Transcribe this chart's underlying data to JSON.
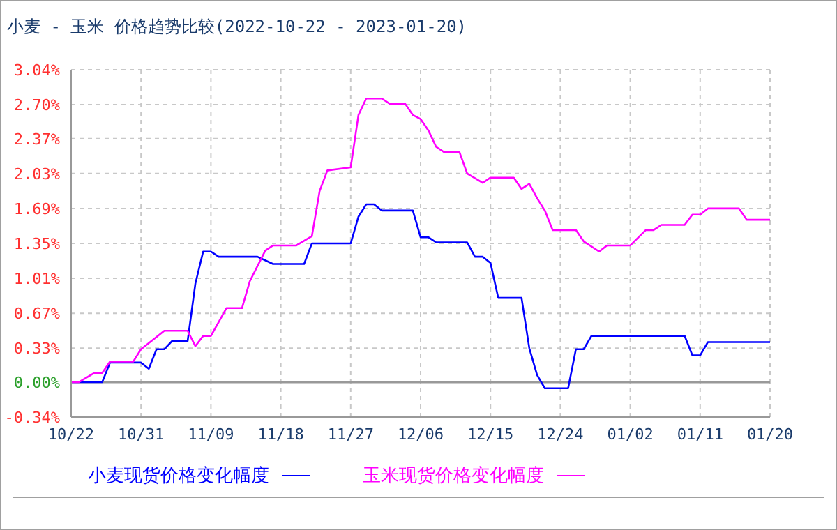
{
  "chart_data": {
    "type": "line",
    "title": "小麦 - 玉米 价格趋势比较(2022-10-22 - 2023-01-20)",
    "series": [
      {
        "name": "小麦现货价格变化幅度",
        "color": "#0000ff",
        "x": [
          "2022-10-22",
          "2022-10-26",
          "2022-10-27",
          "2022-10-31",
          "2022-11-01",
          "2022-11-02",
          "2022-11-03",
          "2022-11-04",
          "2022-11-06",
          "2022-11-07",
          "2022-11-08",
          "2022-11-09",
          "2022-11-10",
          "2022-11-15",
          "2022-11-17",
          "2022-11-21",
          "2022-11-22",
          "2022-11-27",
          "2022-11-28",
          "2022-11-29",
          "2022-11-30",
          "2022-12-01",
          "2022-12-05",
          "2022-12-06",
          "2022-12-07",
          "2022-12-08",
          "2022-12-12",
          "2022-12-13",
          "2022-12-14",
          "2022-12-15",
          "2022-12-16",
          "2022-12-19",
          "2022-12-20",
          "2022-12-21",
          "2022-12-22",
          "2022-12-25",
          "2022-12-26",
          "2022-12-27",
          "2022-12-28",
          "2023-01-09",
          "2023-01-10",
          "2023-01-11",
          "2023-01-12",
          "2023-01-20"
        ],
        "values": [
          0,
          0,
          0.19,
          0.19,
          0.13,
          0.32,
          0.32,
          0.4,
          0.4,
          0.96,
          1.27,
          1.27,
          1.22,
          1.22,
          1.15,
          1.15,
          1.35,
          1.35,
          1.61,
          1.73,
          1.73,
          1.67,
          1.67,
          1.41,
          1.41,
          1.36,
          1.36,
          1.22,
          1.22,
          1.16,
          0.82,
          0.82,
          0.33,
          0.07,
          -0.06,
          -0.06,
          0.32,
          0.32,
          0.45,
          0.45,
          0.26,
          0.26,
          0.39,
          0.39
        ]
      },
      {
        "name": "玉米现货价格变化幅度",
        "color": "#ff00ff",
        "x": [
          "2022-10-22",
          "2022-10-23",
          "2022-10-25",
          "2022-10-26",
          "2022-10-27",
          "2022-10-30",
          "2022-10-31",
          "2022-11-03",
          "2022-11-06",
          "2022-11-07",
          "2022-11-08",
          "2022-11-09",
          "2022-11-11",
          "2022-11-13",
          "2022-11-14",
          "2022-11-16",
          "2022-11-17",
          "2022-11-20",
          "2022-11-22",
          "2022-11-23",
          "2022-11-24",
          "2022-11-27",
          "2022-11-28",
          "2022-11-29",
          "2022-12-01",
          "2022-12-02",
          "2022-12-04",
          "2022-12-05",
          "2022-12-06",
          "2022-12-07",
          "2022-12-08",
          "2022-12-09",
          "2022-12-11",
          "2022-12-12",
          "2022-12-14",
          "2022-12-15",
          "2022-12-18",
          "2022-12-19",
          "2022-12-20",
          "2022-12-21",
          "2022-12-22",
          "2022-12-23",
          "2022-12-26",
          "2022-12-27",
          "2022-12-29",
          "2022-12-30",
          "2023-01-02",
          "2023-01-04",
          "2023-01-05",
          "2023-01-06",
          "2023-01-09",
          "2023-01-10",
          "2023-01-11",
          "2023-01-12",
          "2023-01-16",
          "2023-01-17",
          "2023-01-20"
        ],
        "values": [
          0,
          0,
          0.09,
          0.09,
          0.2,
          0.2,
          0.32,
          0.5,
          0.5,
          0.35,
          0.45,
          0.45,
          0.72,
          0.72,
          0.98,
          1.28,
          1.33,
          1.33,
          1.42,
          1.86,
          2.06,
          2.09,
          2.6,
          2.76,
          2.76,
          2.71,
          2.71,
          2.6,
          2.56,
          2.45,
          2.29,
          2.24,
          2.24,
          2.03,
          1.94,
          1.99,
          1.99,
          1.88,
          1.93,
          1.79,
          1.67,
          1.48,
          1.48,
          1.37,
          1.27,
          1.33,
          1.33,
          1.48,
          1.48,
          1.53,
          1.53,
          1.63,
          1.63,
          1.69,
          1.69,
          1.58,
          1.58
        ]
      }
    ],
    "xlim": [
      "2022-10-22",
      "2023-01-20"
    ],
    "xticks": [
      {
        "value": "2022-10-22",
        "label": "10/22"
      },
      {
        "value": "2022-10-31",
        "label": "10/31"
      },
      {
        "value": "2022-11-09",
        "label": "11/09"
      },
      {
        "value": "2022-11-18",
        "label": "11/18"
      },
      {
        "value": "2022-11-27",
        "label": "11/27"
      },
      {
        "value": "2022-12-06",
        "label": "12/06"
      },
      {
        "value": "2022-12-15",
        "label": "12/15"
      },
      {
        "value": "2022-12-24",
        "label": "12/24"
      },
      {
        "value": "2023-01-02",
        "label": "01/02"
      },
      {
        "value": "2023-01-11",
        "label": "01/11"
      },
      {
        "value": "2023-01-20",
        "label": "01/20"
      }
    ],
    "ylim": [
      -0.34,
      3.04
    ],
    "yticks": [
      {
        "value": -0.34,
        "label": "-0.34%"
      },
      {
        "value": 0,
        "label": "0.00%"
      },
      {
        "value": 0.33,
        "label": "0.33%"
      },
      {
        "value": 0.67,
        "label": "0.67%"
      },
      {
        "value": 1.01,
        "label": "1.01%"
      },
      {
        "value": 1.35,
        "label": "1.35%"
      },
      {
        "value": 1.69,
        "label": "1.69%"
      },
      {
        "value": 2.03,
        "label": "2.03%"
      },
      {
        "value": 2.37,
        "label": "2.37%"
      },
      {
        "value": 2.7,
        "label": "2.70%"
      },
      {
        "value": 3.04,
        "label": "3.04%"
      }
    ],
    "ref_lines": [
      {
        "axis": "y",
        "value": 0,
        "color": "#999999"
      }
    ],
    "grid": true,
    "legend": "bottom left",
    "marker": "none",
    "line_style": "solid"
  }
}
